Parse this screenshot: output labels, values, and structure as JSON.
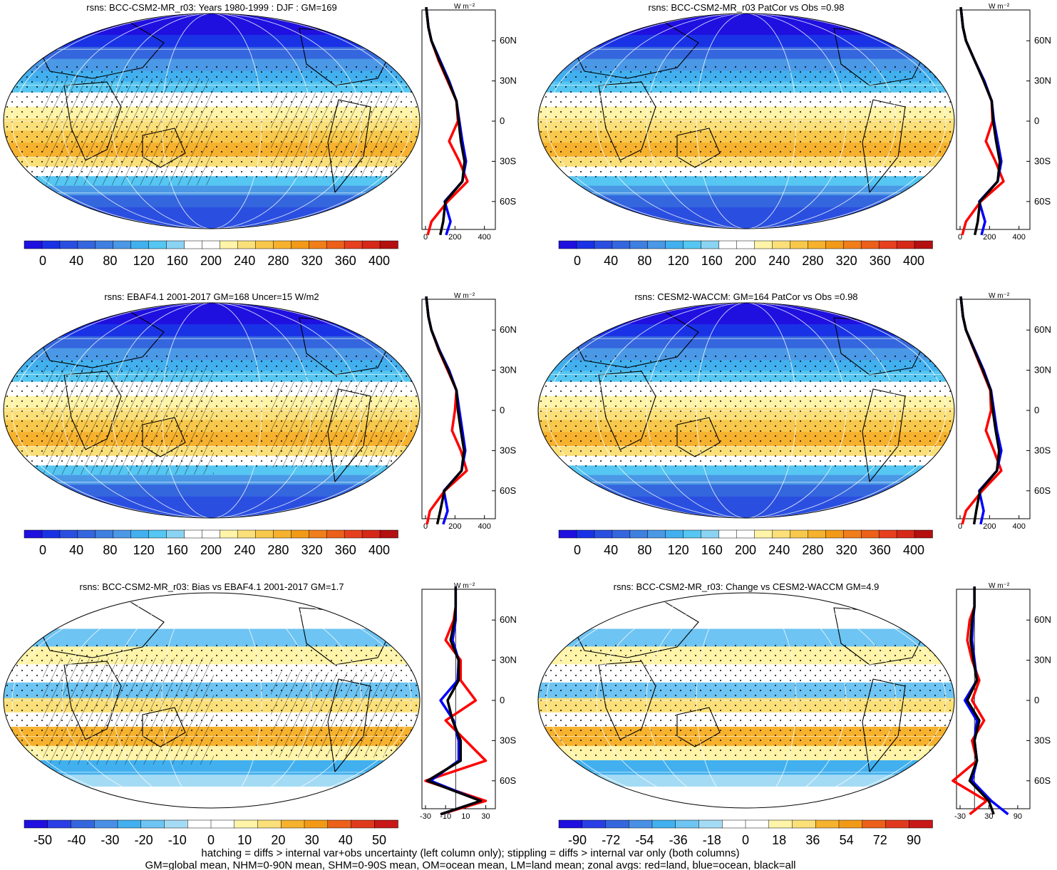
{
  "colors": {
    "abs_scale": [
      "#1f10e0",
      "#1a32e6",
      "#2a4fe0",
      "#3466de",
      "#3f7fe0",
      "#4a98e6",
      "#42b0ef",
      "#56c6f2",
      "#8bd3f2",
      "#ffffff",
      "#ffffff",
      "#fff4a8",
      "#fbe07a",
      "#f8c84c",
      "#f6b22e",
      "#f29a18",
      "#f07e1a",
      "#ec601a",
      "#e64020",
      "#d62818",
      "#b41010"
    ],
    "diff_scale": [
      "#1f10e0",
      "#2a3ee6",
      "#3466de",
      "#4a8fe6",
      "#42b0ef",
      "#6ec4f2",
      "#a4dbf4",
      "#ffffff",
      "#ffffff",
      "#fff4a8",
      "#fbe07a",
      "#f6b22e",
      "#f29a18",
      "#ec601a",
      "#e03a1e",
      "#c81818"
    ],
    "land_line": "#ff0000",
    "ocean_line": "#0000ff",
    "all_line": "#000000"
  },
  "panels": [
    {
      "title": "rsns: BCC-CSM2-MR_r03: Years 1980-1999 : DJF : GM=169",
      "colorbar_labels": [
        "0",
        "40",
        "80",
        "120",
        "160",
        "200",
        "240",
        "280",
        "320",
        "360",
        "400"
      ],
      "zonal_xticks": [
        "0",
        "200",
        "400"
      ],
      "map_type": "abs",
      "hatching": true
    },
    {
      "title": "rsns: BCC-CSM2-MR_r03 PatCor vs Obs =0.98",
      "colorbar_labels": [
        "0",
        "40",
        "80",
        "120",
        "160",
        "200",
        "240",
        "280",
        "320",
        "360",
        "400"
      ],
      "zonal_xticks": [
        "0",
        "200",
        "400"
      ],
      "map_type": "abs",
      "hatching": false
    },
    {
      "title": "rsns: EBAF4.1 2001-2017 GM=168 Uncer=15 W/m2",
      "colorbar_labels": [
        "0",
        "40",
        "80",
        "120",
        "160",
        "200",
        "240",
        "280",
        "320",
        "360",
        "400"
      ],
      "zonal_xticks": [
        "0",
        "200",
        "400"
      ],
      "map_type": "abs",
      "hatching": true
    },
    {
      "title": "rsns: CESM2-WACCM: GM=164 PatCor vs Obs =0.98",
      "colorbar_labels": [
        "0",
        "40",
        "80",
        "120",
        "160",
        "200",
        "240",
        "280",
        "320",
        "360",
        "400"
      ],
      "zonal_xticks": [
        "0",
        "200",
        "400"
      ],
      "map_type": "abs",
      "hatching": false
    },
    {
      "title": "rsns: BCC-CSM2-MR_r03: Bias vs EBAF4.1 2001-2017 GM=1.7",
      "colorbar_labels": [
        "-50",
        "-40",
        "-30",
        "-20",
        "-10",
        "0",
        "10",
        "20",
        "30",
        "40",
        "50"
      ],
      "zonal_xticks": [
        "-30",
        "-10",
        "10",
        "30"
      ],
      "map_type": "diff",
      "hatching": true
    },
    {
      "title": "rsns: BCC-CSM2-MR_r03: Change vs CESM2-WACCM GM=4.9",
      "colorbar_labels": [
        "-90",
        "-72",
        "-54",
        "-36",
        "-18",
        "0",
        "18",
        "36",
        "54",
        "72",
        "90"
      ],
      "zonal_xticks": [
        "-30",
        "30",
        "90"
      ],
      "map_type": "diff",
      "hatching": false
    }
  ],
  "zonal_unit": "W m⁻²",
  "lat_labels": [
    "60N",
    "30N",
    "0",
    "30S",
    "60S"
  ],
  "footer": {
    "line1": "hatching = diffs > internal var+obs uncertainty (left column only); stippling = diffs > internal var only (both columns)",
    "line2": "GM=global mean, NHM=0-90N mean, SHM=0-90S mean, OM=ocean mean, LM=land mean; zonal avgs: red=land, blue=ocean, black=all"
  },
  "chart_data": [
    {
      "type": "heatmap",
      "title": "rsns: BCC-CSM2-MR_r03: Years 1980-1999 : DJF : GM=169",
      "colorbar": [
        0,
        40,
        80,
        120,
        160,
        200,
        240,
        280,
        320,
        360,
        400
      ],
      "zonal_mean": {
        "lat": [
          85,
          70,
          60,
          45,
          30,
          15,
          0,
          -15,
          -30,
          -45,
          -60,
          -75,
          -85
        ],
        "land": [
          5,
          20,
          40,
          90,
          150,
          210,
          220,
          160,
          230,
          285,
          150,
          40,
          15
        ],
        "ocean": [
          5,
          20,
          40,
          100,
          160,
          210,
          230,
          250,
          275,
          250,
          130,
          170,
          140
        ],
        "all": [
          5,
          20,
          40,
          95,
          155,
          210,
          225,
          240,
          265,
          250,
          135,
          120,
          100
        ]
      }
    },
    {
      "type": "heatmap",
      "title": "rsns: BCC-CSM2-MR_r03 PatCor vs Obs =0.98",
      "colorbar": [
        0,
        40,
        80,
        120,
        160,
        200,
        240,
        280,
        320,
        360,
        400
      ],
      "zonal_mean": {
        "lat": [
          85,
          70,
          60,
          45,
          30,
          15,
          0,
          -15,
          -30,
          -45,
          -60,
          -75,
          -85
        ],
        "land": [
          5,
          20,
          40,
          100,
          160,
          215,
          220,
          175,
          240,
          295,
          140,
          40,
          15
        ],
        "ocean": [
          5,
          20,
          40,
          100,
          165,
          215,
          230,
          255,
          280,
          255,
          130,
          170,
          145
        ],
        "all": [
          5,
          20,
          40,
          100,
          160,
          215,
          225,
          245,
          270,
          255,
          135,
          120,
          100
        ]
      }
    },
    {
      "type": "heatmap",
      "title": "rsns: EBAF4.1 2001-2017 GM=168 Uncer=15 W/m2",
      "colorbar": [
        0,
        40,
        80,
        120,
        160,
        200,
        240,
        280,
        320,
        360,
        400
      ],
      "zonal_mean": {
        "lat": [
          85,
          70,
          60,
          45,
          30,
          15,
          0,
          -15,
          -30,
          -45,
          -60,
          -75,
          -85
        ],
        "land": [
          5,
          20,
          40,
          90,
          150,
          210,
          200,
          180,
          240,
          280,
          130,
          30,
          10
        ],
        "ocean": [
          5,
          20,
          40,
          95,
          160,
          210,
          230,
          250,
          270,
          245,
          125,
          150,
          120
        ],
        "all": [
          5,
          20,
          40,
          92,
          155,
          210,
          220,
          240,
          262,
          245,
          128,
          100,
          80
        ]
      }
    },
    {
      "type": "heatmap",
      "title": "rsns: CESM2-WACCM: GM=164 PatCor vs Obs =0.98",
      "colorbar": [
        0,
        40,
        80,
        120,
        160,
        200,
        240,
        280,
        320,
        360,
        400
      ],
      "zonal_mean": {
        "lat": [
          85,
          70,
          60,
          45,
          30,
          15,
          0,
          -15,
          -30,
          -45,
          -60,
          -75,
          -85
        ],
        "land": [
          5,
          20,
          40,
          95,
          150,
          205,
          210,
          175,
          230,
          280,
          150,
          40,
          15
        ],
        "ocean": [
          5,
          20,
          40,
          100,
          160,
          210,
          230,
          250,
          280,
          250,
          130,
          160,
          140
        ],
        "all": [
          5,
          20,
          40,
          97,
          155,
          208,
          222,
          242,
          265,
          250,
          135,
          110,
          95
        ]
      }
    },
    {
      "type": "heatmap",
      "title": "rsns: BCC-CSM2-MR_r03: Bias vs EBAF4.1 2001-2017 GM=1.7",
      "colorbar": [
        -50,
        -40,
        -30,
        -20,
        -10,
        0,
        10,
        20,
        30,
        40,
        50
      ],
      "zonal_mean": {
        "lat": [
          85,
          70,
          60,
          45,
          30,
          15,
          0,
          -15,
          -30,
          -45,
          -60,
          -75,
          -85
        ],
        "land": [
          0,
          0,
          -2,
          -10,
          5,
          5,
          20,
          -10,
          10,
          30,
          -30,
          30,
          -15
        ],
        "ocean": [
          0,
          0,
          0,
          -3,
          3,
          2,
          -15,
          -2,
          3,
          3,
          -25,
          25,
          -15
        ],
        "all": [
          0,
          0,
          -1,
          -5,
          3,
          3,
          -8,
          -3,
          5,
          5,
          -28,
          25,
          -15
        ]
      }
    },
    {
      "type": "heatmap",
      "title": "rsns: BCC-CSM2-MR_r03: Change vs CESM2-WACCM GM=4.9",
      "colorbar": [
        -90,
        -72,
        -54,
        -36,
        -18,
        0,
        18,
        36,
        54,
        72,
        90
      ],
      "zonal_mean": {
        "lat": [
          85,
          70,
          60,
          45,
          30,
          15,
          0,
          -15,
          -30,
          -45,
          -60,
          -75,
          -85
        ],
        "land": [
          0,
          0,
          -10,
          -15,
          -5,
          10,
          -5,
          20,
          -5,
          5,
          -45,
          25,
          -10
        ],
        "ocean": [
          0,
          0,
          -3,
          -5,
          0,
          5,
          -20,
          5,
          0,
          5,
          -5,
          35,
          70
        ],
        "all": [
          0,
          0,
          -5,
          -8,
          -2,
          5,
          -15,
          10,
          0,
          5,
          -10,
          30,
          40
        ]
      }
    }
  ]
}
